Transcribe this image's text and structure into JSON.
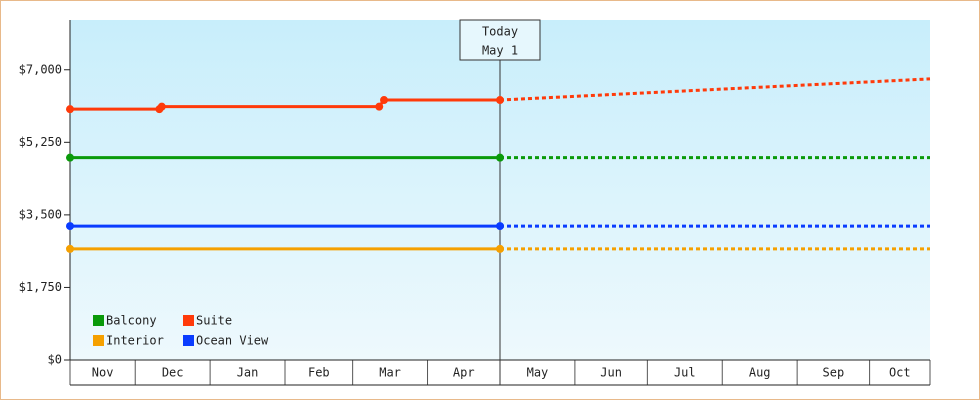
{
  "chart_data": {
    "type": "line",
    "ylim": [
      0,
      8200
    ],
    "yticks": [
      {
        "value": 0,
        "label": "$0"
      },
      {
        "value": 1750,
        "label": "$1,750"
      },
      {
        "value": 3500,
        "label": "$3,500"
      },
      {
        "value": 5250,
        "label": "$5,250"
      },
      {
        "value": 7000,
        "label": "$7,000"
      }
    ],
    "xlim": [
      0,
      356
    ],
    "categories": [
      "Nov",
      "Dec",
      "Jan",
      "Feb",
      "Mar",
      "Apr",
      "May",
      "Jun",
      "Jul",
      "Aug",
      "Sep",
      "Oct"
    ],
    "month_edges": [
      0,
      27,
      58,
      89,
      117,
      148,
      178,
      209,
      239,
      270,
      301,
      331,
      356
    ],
    "today": {
      "label": "Today",
      "date": "May 1",
      "x": 178
    },
    "series": [
      {
        "name": "Balcony",
        "color": "#0a9a0a",
        "x": [
          0,
          178
        ],
        "values": [
          4880,
          4880
        ],
        "forecast_x": [
          178,
          356
        ],
        "forecast_values": [
          4880,
          4880
        ]
      },
      {
        "name": "Suite",
        "color": "#ff3a0a",
        "x": [
          0,
          37,
          38,
          128,
          130,
          178
        ],
        "values": [
          6050,
          6050,
          6110,
          6110,
          6270,
          6270
        ],
        "forecast_x": [
          178,
          356
        ],
        "forecast_values": [
          6270,
          6780
        ]
      },
      {
        "name": "Interior",
        "color": "#f5a000",
        "x": [
          0,
          178
        ],
        "values": [
          2680,
          2680
        ],
        "forecast_x": [
          178,
          356
        ],
        "forecast_values": [
          2680,
          2680
        ]
      },
      {
        "name": "Ocean View",
        "color": "#0a3cff",
        "x": [
          0,
          178
        ],
        "values": [
          3230,
          3230
        ],
        "forecast_x": [
          178,
          356
        ],
        "forecast_values": [
          3230,
          3230
        ]
      }
    ]
  }
}
